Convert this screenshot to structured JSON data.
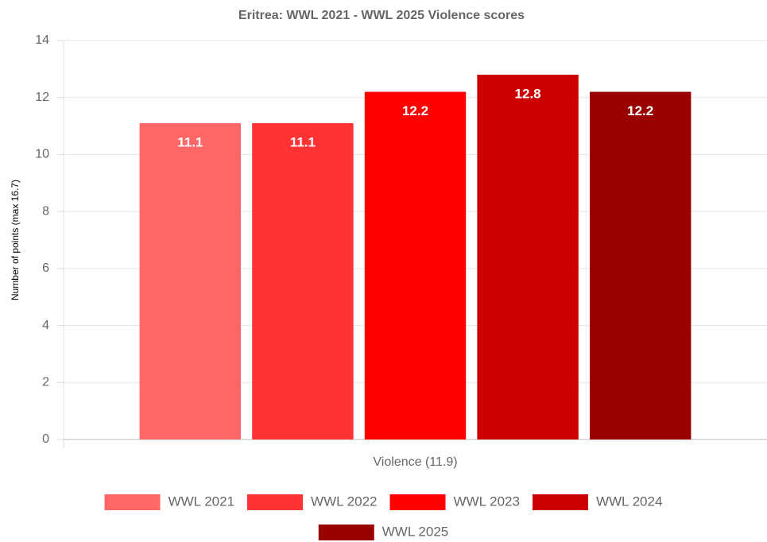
{
  "chart_data": {
    "type": "bar",
    "title": "Eritrea: WWL 2021 - WWL 2025 Violence scores",
    "y_label": "Number of points (max 16.7)",
    "categories": [
      "Violence (11.9)"
    ],
    "series": [
      {
        "name": "WWL 2021",
        "color": "#ff6666",
        "values": [
          11.1
        ]
      },
      {
        "name": "WWL 2022",
        "color": "#ff3333",
        "values": [
          11.1
        ]
      },
      {
        "name": "WWL 2023",
        "color": "#ff0000",
        "values": [
          12.2
        ]
      },
      {
        "name": "WWL 2024",
        "color": "#cc0000",
        "values": [
          12.8
        ]
      },
      {
        "name": "WWL 2025",
        "color": "#990000",
        "values": [
          12.2
        ]
      }
    ],
    "ylim": [
      0,
      14
    ],
    "yticks": [
      0,
      2,
      4,
      6,
      8,
      10,
      12,
      14
    ],
    "grid": true,
    "legend": "bottom"
  }
}
